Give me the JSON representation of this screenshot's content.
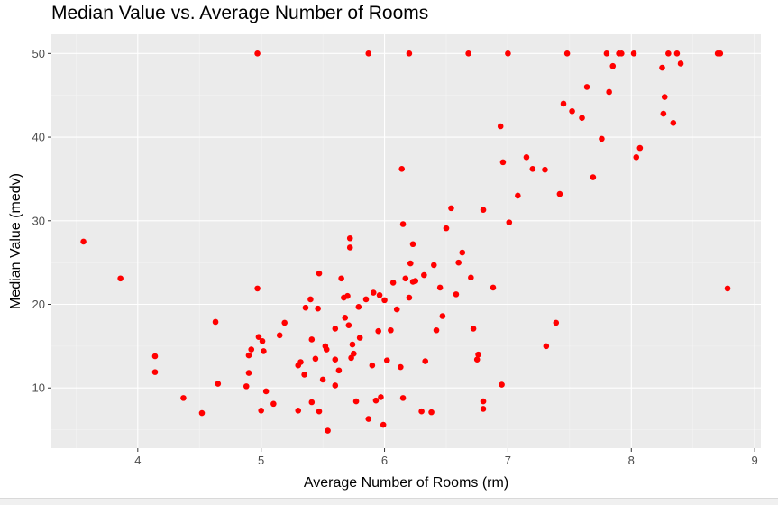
{
  "chart_data": {
    "type": "scatter",
    "title": "Median Value vs. Average Number of Rooms",
    "xlabel": "Average Number of Rooms (rm)",
    "ylabel": "Median Value (medv)",
    "xlim": [
      3.3,
      9.05
    ],
    "ylim": [
      2.8,
      52.3
    ],
    "x_ticks": [
      4,
      5,
      6,
      7,
      8,
      9
    ],
    "y_ticks": [
      10,
      20,
      30,
      40,
      50
    ],
    "grid": true,
    "legend": "none",
    "point_color": "#FF0000",
    "panel_color": "#EBEBEB",
    "points": [
      [
        3.56,
        27.5
      ],
      [
        3.86,
        23.1
      ],
      [
        4.14,
        13.8
      ],
      [
        4.14,
        11.9
      ],
      [
        4.37,
        8.8
      ],
      [
        4.52,
        7.0
      ],
      [
        4.63,
        17.9
      ],
      [
        4.65,
        10.5
      ],
      [
        4.88,
        10.2
      ],
      [
        4.9,
        11.8
      ],
      [
        4.9,
        13.9
      ],
      [
        4.92,
        14.6
      ],
      [
        4.97,
        21.9
      ],
      [
        4.97,
        50.0
      ],
      [
        4.98,
        16.1
      ],
      [
        5.0,
        7.3
      ],
      [
        5.01,
        15.6
      ],
      [
        5.02,
        14.4
      ],
      [
        5.04,
        9.6
      ],
      [
        5.1,
        8.1
      ],
      [
        5.15,
        16.3
      ],
      [
        5.19,
        17.8
      ],
      [
        5.3,
        12.7
      ],
      [
        5.3,
        7.3
      ],
      [
        5.32,
        13.1
      ],
      [
        5.35,
        11.6
      ],
      [
        5.36,
        19.6
      ],
      [
        5.4,
        20.6
      ],
      [
        5.41,
        8.3
      ],
      [
        5.41,
        15.8
      ],
      [
        5.44,
        13.5
      ],
      [
        5.46,
        19.5
      ],
      [
        5.47,
        23.7
      ],
      [
        5.47,
        7.2
      ],
      [
        5.5,
        11.0
      ],
      [
        5.52,
        15.0
      ],
      [
        5.53,
        14.6
      ],
      [
        5.54,
        4.9
      ],
      [
        5.6,
        10.3
      ],
      [
        5.6,
        13.4
      ],
      [
        5.6,
        17.1
      ],
      [
        5.63,
        12.1
      ],
      [
        5.65,
        23.1
      ],
      [
        5.67,
        20.8
      ],
      [
        5.68,
        18.4
      ],
      [
        5.7,
        21.0
      ],
      [
        5.71,
        17.5
      ],
      [
        5.72,
        26.8
      ],
      [
        5.72,
        27.9
      ],
      [
        5.73,
        13.6
      ],
      [
        5.74,
        15.2
      ],
      [
        5.75,
        14.1
      ],
      [
        5.77,
        8.4
      ],
      [
        5.79,
        19.7
      ],
      [
        5.8,
        16.0
      ],
      [
        5.85,
        20.6
      ],
      [
        5.87,
        50.0
      ],
      [
        5.87,
        6.3
      ],
      [
        5.9,
        12.7
      ],
      [
        5.91,
        21.4
      ],
      [
        5.93,
        8.5
      ],
      [
        5.95,
        16.8
      ],
      [
        5.96,
        21.1
      ],
      [
        5.97,
        8.9
      ],
      [
        5.99,
        5.6
      ],
      [
        6.0,
        20.5
      ],
      [
        6.02,
        13.3
      ],
      [
        6.05,
        16.9
      ],
      [
        6.07,
        22.6
      ],
      [
        6.1,
        19.4
      ],
      [
        6.13,
        12.5
      ],
      [
        6.14,
        36.2
      ],
      [
        6.15,
        29.6
      ],
      [
        6.15,
        8.8
      ],
      [
        6.17,
        23.1
      ],
      [
        6.2,
        50.0
      ],
      [
        6.2,
        20.8
      ],
      [
        6.21,
        24.9
      ],
      [
        6.23,
        22.7
      ],
      [
        6.23,
        27.2
      ],
      [
        6.25,
        22.8
      ],
      [
        6.3,
        7.2
      ],
      [
        6.32,
        23.5
      ],
      [
        6.33,
        13.2
      ],
      [
        6.38,
        7.1
      ],
      [
        6.4,
        24.7
      ],
      [
        6.42,
        16.9
      ],
      [
        6.45,
        22.0
      ],
      [
        6.47,
        18.6
      ],
      [
        6.5,
        29.1
      ],
      [
        6.54,
        31.5
      ],
      [
        6.58,
        21.2
      ],
      [
        6.6,
        25.0
      ],
      [
        6.63,
        26.2
      ],
      [
        6.68,
        50.0
      ],
      [
        6.7,
        23.2
      ],
      [
        6.72,
        17.1
      ],
      [
        6.75,
        13.4
      ],
      [
        6.76,
        14.0
      ],
      [
        6.8,
        8.4
      ],
      [
        6.8,
        7.5
      ],
      [
        6.8,
        31.3
      ],
      [
        6.88,
        22.0
      ],
      [
        6.94,
        41.3
      ],
      [
        6.95,
        10.4
      ],
      [
        6.96,
        37.0
      ],
      [
        7.0,
        50.0
      ],
      [
        7.01,
        29.8
      ],
      [
        7.08,
        33.0
      ],
      [
        7.15,
        37.6
      ],
      [
        7.2,
        36.2
      ],
      [
        7.3,
        36.1
      ],
      [
        7.31,
        15.0
      ],
      [
        7.39,
        17.8
      ],
      [
        7.42,
        33.2
      ],
      [
        7.45,
        44.0
      ],
      [
        7.48,
        50.0
      ],
      [
        7.52,
        43.1
      ],
      [
        7.6,
        42.3
      ],
      [
        7.64,
        46.0
      ],
      [
        7.69,
        35.2
      ],
      [
        7.76,
        39.8
      ],
      [
        7.8,
        50.0
      ],
      [
        7.82,
        45.4
      ],
      [
        7.85,
        48.5
      ],
      [
        7.9,
        50.0
      ],
      [
        7.92,
        50.0
      ],
      [
        8.02,
        50.0
      ],
      [
        8.04,
        37.6
      ],
      [
        8.07,
        38.7
      ],
      [
        8.25,
        48.3
      ],
      [
        8.26,
        42.8
      ],
      [
        8.27,
        44.8
      ],
      [
        8.3,
        50.0
      ],
      [
        8.34,
        41.7
      ],
      [
        8.37,
        50.0
      ],
      [
        8.4,
        48.8
      ],
      [
        8.7,
        50.0
      ],
      [
        8.72,
        50.0
      ],
      [
        8.78,
        21.9
      ]
    ]
  }
}
